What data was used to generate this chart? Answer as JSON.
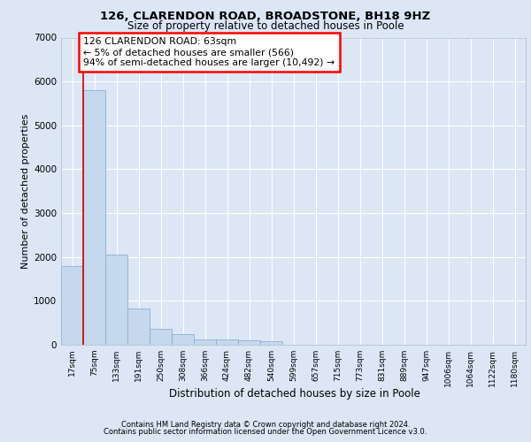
{
  "title1": "126, CLARENDON ROAD, BROADSTONE, BH18 9HZ",
  "title2": "Size of property relative to detached houses in Poole",
  "xlabel": "Distribution of detached houses by size in Poole",
  "ylabel": "Number of detached properties",
  "bar_labels": [
    "17sqm",
    "75sqm",
    "133sqm",
    "191sqm",
    "250sqm",
    "308sqm",
    "366sqm",
    "424sqm",
    "482sqm",
    "540sqm",
    "599sqm",
    "657sqm",
    "715sqm",
    "773sqm",
    "831sqm",
    "889sqm",
    "947sqm",
    "1006sqm",
    "1064sqm",
    "1122sqm",
    "1180sqm"
  ],
  "bar_values": [
    1800,
    5800,
    2060,
    820,
    370,
    240,
    130,
    115,
    100,
    85,
    0,
    0,
    0,
    0,
    0,
    0,
    0,
    0,
    0,
    0,
    0
  ],
  "bar_color": "#c5d8ed",
  "bar_edge_color": "#8ab0d0",
  "annotation_text": "126 CLARENDON ROAD: 63sqm\n← 5% of detached houses are smaller (566)\n94% of semi-detached houses are larger (10,492) →",
  "vline_x": 0.5,
  "vline_color": "#cc0000",
  "ylim": [
    0,
    7000
  ],
  "yticks": [
    0,
    1000,
    2000,
    3000,
    4000,
    5000,
    6000,
    7000
  ],
  "footer1": "Contains HM Land Registry data © Crown copyright and database right 2024.",
  "footer2": "Contains public sector information licensed under the Open Government Licence v3.0.",
  "bg_color": "#dce6f5",
  "grid_color": "#ffffff"
}
